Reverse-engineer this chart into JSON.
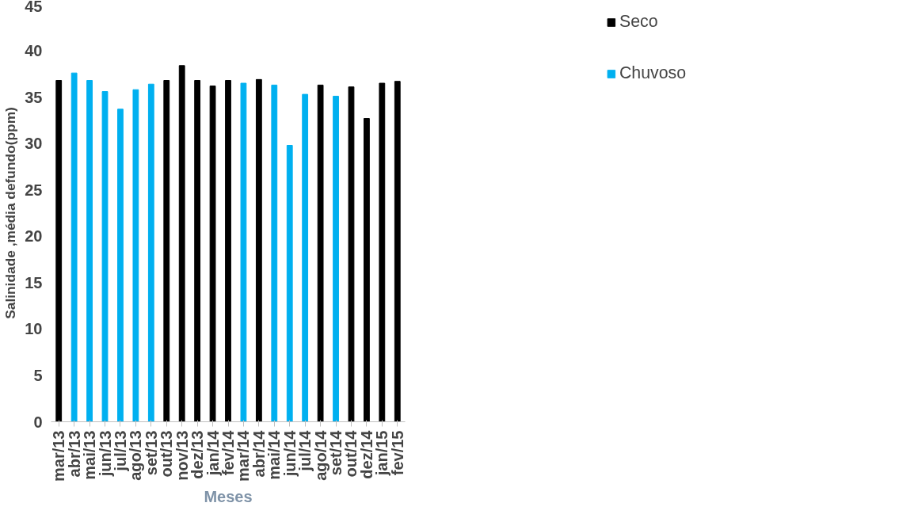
{
  "chart_data": {
    "type": "bar",
    "xlabel": "Meses",
    "ylabel": "Salinidade ,média defundo(ppm)",
    "categories": [
      "mar/13",
      "abr/13",
      "mai/13",
      "jun/13",
      "jul/13",
      "ago/13",
      "set/13",
      "out/13",
      "nov/13",
      "dez/13",
      "jan/14",
      "fev/14",
      "mar/14",
      "abr/14",
      "mai/14",
      "jun/14",
      "jul/14",
      "ago/14",
      "set/14",
      "out/14",
      "dez/14",
      "jan/15",
      "fev/15"
    ],
    "series": [
      {
        "name": "Seco",
        "color": "#000000",
        "values": [
          36.8,
          null,
          null,
          null,
          null,
          null,
          null,
          36.8,
          38.4,
          36.8,
          36.2,
          36.8,
          null,
          36.9,
          null,
          null,
          null,
          36.3,
          null,
          36.1,
          32.7,
          36.5,
          36.7
        ]
      },
      {
        "name": "Chuvoso",
        "color": "#00b0f0",
        "values": [
          null,
          37.6,
          36.8,
          35.6,
          33.7,
          35.8,
          36.4,
          null,
          null,
          null,
          null,
          null,
          36.5,
          null,
          36.3,
          29.8,
          35.3,
          null,
          35.1,
          null,
          null,
          null,
          null
        ]
      }
    ],
    "ylim": [
      0,
      45
    ],
    "yticks": [
      0,
      5,
      10,
      15,
      20,
      25,
      30,
      35,
      40,
      45
    ],
    "grid": false,
    "legend": "top right"
  }
}
